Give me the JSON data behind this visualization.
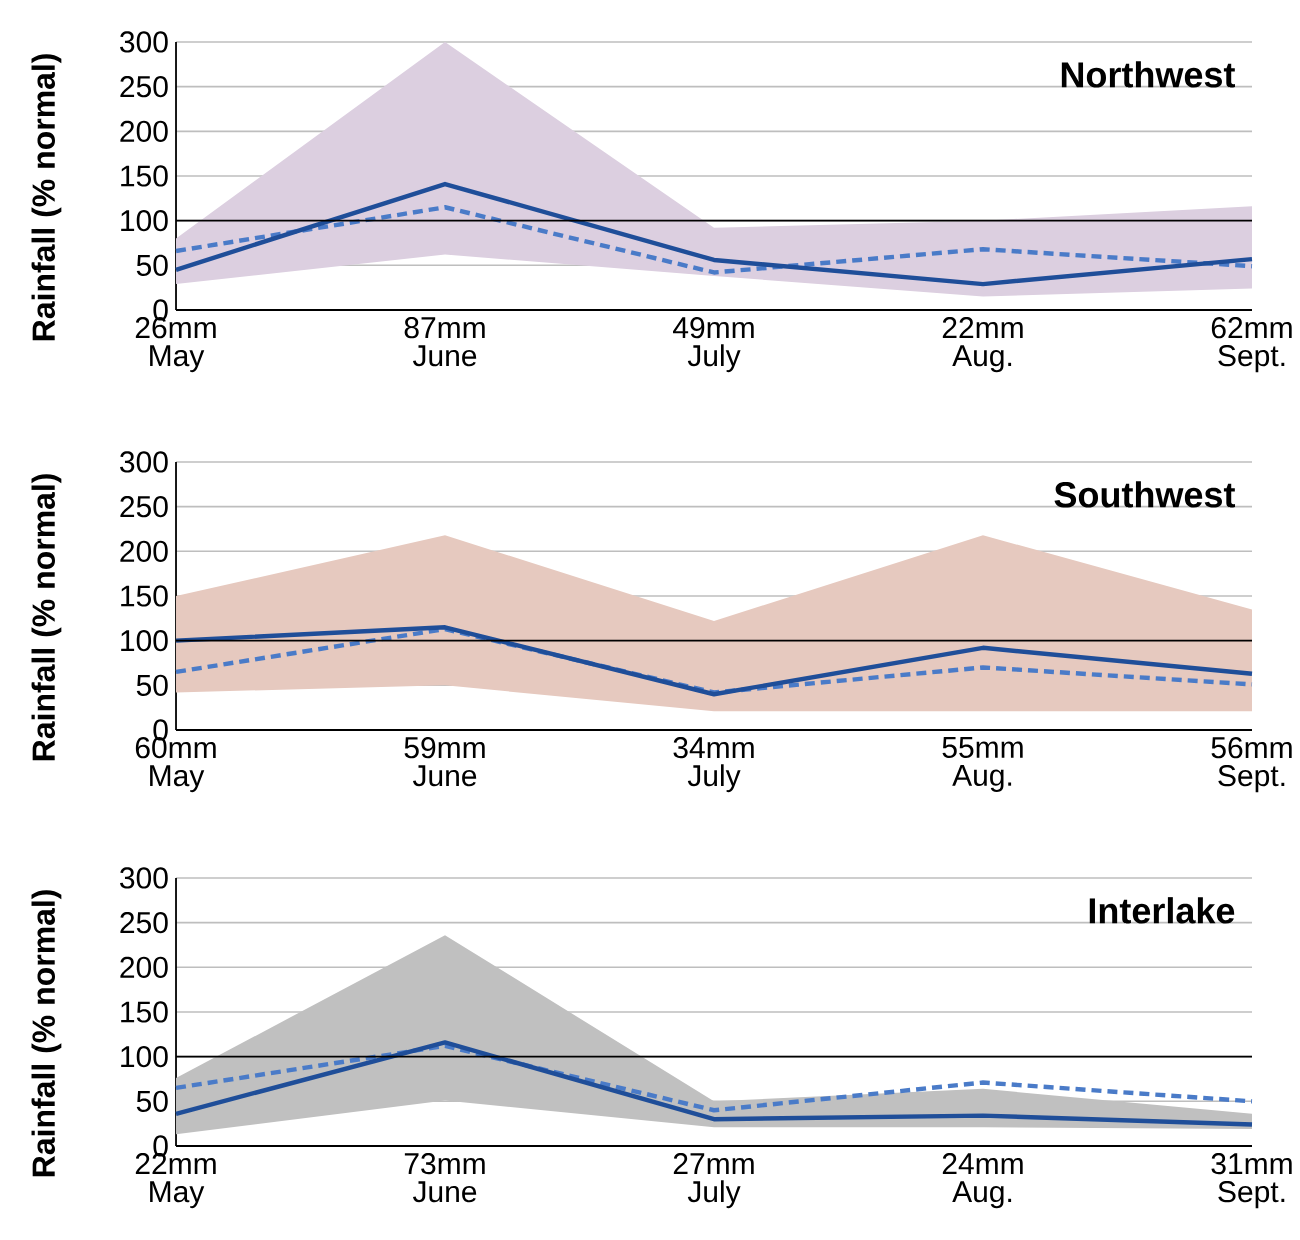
{
  "chart_data": [
    {
      "type": "line",
      "title": "Northwest",
      "ylabel": "Rainfall (% normal)",
      "categories": [
        "26mm May",
        "87mm June",
        "49mm July",
        "22mm Aug.",
        "62mm Sept."
      ],
      "ylim": [
        0,
        300
      ],
      "yticks": [
        0,
        50,
        100,
        150,
        200,
        250,
        300
      ],
      "grid": "y",
      "ref_lines": [
        {
          "axis": "y",
          "value": 100,
          "color": "#000000"
        }
      ],
      "series": [
        {
          "type": "line",
          "color": "#4a7bc8",
          "line_style": "dashed",
          "values": [
            66,
            115,
            42,
            68,
            49
          ],
          "lower": [
            29,
            62,
            38,
            15,
            24
          ],
          "upper": [
            80,
            300,
            92,
            100,
            116
          ],
          "colors": [
            "#dccfe0",
            "#dccfe0",
            "#dccfe0",
            "#dccfe0",
            "#dccfe0"
          ]
        },
        {
          "type": "line",
          "color": "#1f4e99",
          "line_style": "solid",
          "values": [
            45,
            141,
            56,
            29,
            57
          ]
        }
      ]
    },
    {
      "type": "line",
      "title": "Southwest",
      "ylabel": "Rainfall (% normal)",
      "categories": [
        "60mm May",
        "59mm June",
        "34mm July",
        "55mm Aug.",
        "56mm Sept."
      ],
      "ylim": [
        0,
        300
      ],
      "yticks": [
        0,
        50,
        100,
        150,
        200,
        250,
        300
      ],
      "grid": "y",
      "ref_lines": [
        {
          "axis": "y",
          "value": 100,
          "color": "#000000"
        }
      ],
      "series": [
        {
          "type": "line",
          "color": "#4a7bc8",
          "line_style": "dashed",
          "values": [
            65,
            113,
            42,
            70,
            51
          ],
          "lower": [
            42,
            50,
            21,
            21,
            21
          ],
          "upper": [
            150,
            218,
            122,
            218,
            135
          ],
          "colors": [
            "#e6c9bf",
            "#e6c9bf",
            "#e6c9bf",
            "#e6c9bf",
            "#e6c9bf"
          ]
        },
        {
          "type": "line",
          "color": "#1f4e99",
          "line_style": "solid",
          "values": [
            100,
            115,
            40,
            92,
            63
          ]
        }
      ]
    },
    {
      "type": "line",
      "title": "Interlake",
      "ylabel": "Rainfall (% normal)",
      "categories": [
        "22mm May",
        "73mm June",
        "27mm July",
        "24mm Aug.",
        "31mm Sept."
      ],
      "ylim": [
        0,
        300
      ],
      "yticks": [
        0,
        50,
        100,
        150,
        200,
        250,
        300
      ],
      "grid": "y",
      "ref_lines": [
        {
          "axis": "y",
          "value": 100,
          "color": "#000000"
        }
      ],
      "series": [
        {
          "type": "line",
          "color": "#4a7bc8",
          "line_style": "dashed",
          "values": [
            65,
            112,
            40,
            71,
            50
          ],
          "lower": [
            13,
            51,
            21,
            21,
            19
          ],
          "upper": [
            76,
            236,
            50,
            64,
            36
          ],
          "colors": [
            "#c0c0c0",
            "#c0c0c0",
            "#c0c0c0",
            "#c0c0c0",
            "#c0c0c0"
          ]
        },
        {
          "type": "line",
          "color": "#1f4e99",
          "line_style": "solid",
          "values": [
            36,
            116,
            30,
            34,
            24
          ]
        }
      ]
    }
  ]
}
